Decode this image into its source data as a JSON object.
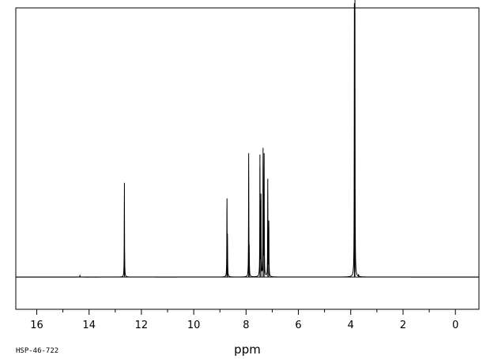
{
  "chart_data": {
    "type": "line",
    "title": "",
    "xlabel": "ppm",
    "ylabel": "",
    "x_reversed": true,
    "xlim": [
      16.8,
      -0.9
    ],
    "ylim": [
      -0.12,
      1.0
    ],
    "major_ticks": [
      16,
      14,
      12,
      10,
      8,
      6,
      4,
      2,
      0
    ],
    "tick_labels": [
      "16",
      "14",
      "12",
      "10",
      "8",
      "6",
      "4",
      "2",
      "0"
    ],
    "minor_ticks": [
      15,
      13,
      11,
      9,
      7,
      5,
      3,
      1
    ],
    "grid": false,
    "legend": "none",
    "sample_code": "HSP-46-722",
    "baseline": 0,
    "series": [
      {
        "peaks": [
          {
            "ppm": 14.35,
            "height": 0.006
          },
          {
            "ppm": 12.65,
            "height": 0.35
          },
          {
            "ppm": 8.73,
            "height": 0.29
          },
          {
            "ppm": 8.71,
            "height": 0.14
          },
          {
            "ppm": 7.9,
            "height": 0.46
          },
          {
            "ppm": 7.88,
            "height": 0.085
          },
          {
            "ppm": 7.47,
            "height": 0.455
          },
          {
            "ppm": 7.43,
            "height": 0.31
          },
          {
            "ppm": 7.35,
            "height": 0.48
          },
          {
            "ppm": 7.31,
            "height": 0.46
          },
          {
            "ppm": 7.17,
            "height": 0.365
          },
          {
            "ppm": 7.13,
            "height": 0.21
          },
          {
            "ppm": 3.86,
            "height": 0.99
          },
          {
            "ppm": 3.84,
            "height": 0.98
          },
          {
            "ppm": 3.7,
            "height": 0.006
          }
        ]
      }
    ]
  }
}
